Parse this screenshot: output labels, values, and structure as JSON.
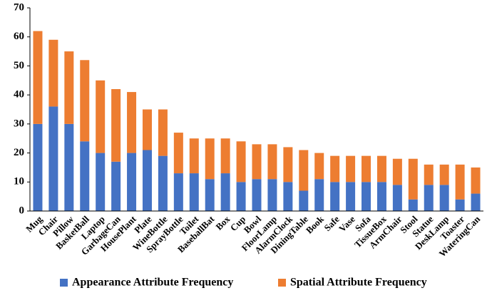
{
  "chart_data": {
    "type": "stacked_bar",
    "categories": [
      "Mug",
      "Chair",
      "Pillow",
      "BasketBall",
      "Laptop",
      "GarbageCan",
      "HousePlant",
      "Plate",
      "WineBottle",
      "SprayBottle",
      "Toilet",
      "BaseballBat",
      "Box",
      "Cup",
      "Bowl",
      "FloorLamp",
      "AlarmClock",
      "DiningTable",
      "Book",
      "Safe",
      "Vase",
      "Sofa",
      "TissueBox",
      "ArmChair",
      "Stool",
      "Statue",
      "DeskLamp",
      "Toaster",
      "WateringCan"
    ],
    "series": [
      {
        "name": "Appearance Attribute Frequency",
        "color": "#4472c4",
        "values": [
          30,
          36,
          30,
          24,
          20,
          17,
          20,
          21,
          19,
          13,
          13,
          11,
          13,
          10,
          11,
          11,
          10,
          7,
          11,
          10,
          10,
          10,
          10,
          9,
          4,
          9,
          9,
          4,
          6
        ]
      },
      {
        "name": "Spatial Attribute Frequency",
        "color": "#ed7d31",
        "values": [
          32,
          23,
          25,
          28,
          25,
          25,
          21,
          14,
          16,
          14,
          12,
          14,
          12,
          14,
          12,
          12,
          12,
          14,
          9,
          9,
          9,
          9,
          9,
          9,
          14,
          7,
          7,
          12,
          9
        ]
      }
    ],
    "ylim": [
      0,
      70
    ],
    "yticks": [
      0,
      10,
      20,
      30,
      40,
      50,
      60,
      70
    ],
    "grid": false,
    "legend": "bottom"
  }
}
